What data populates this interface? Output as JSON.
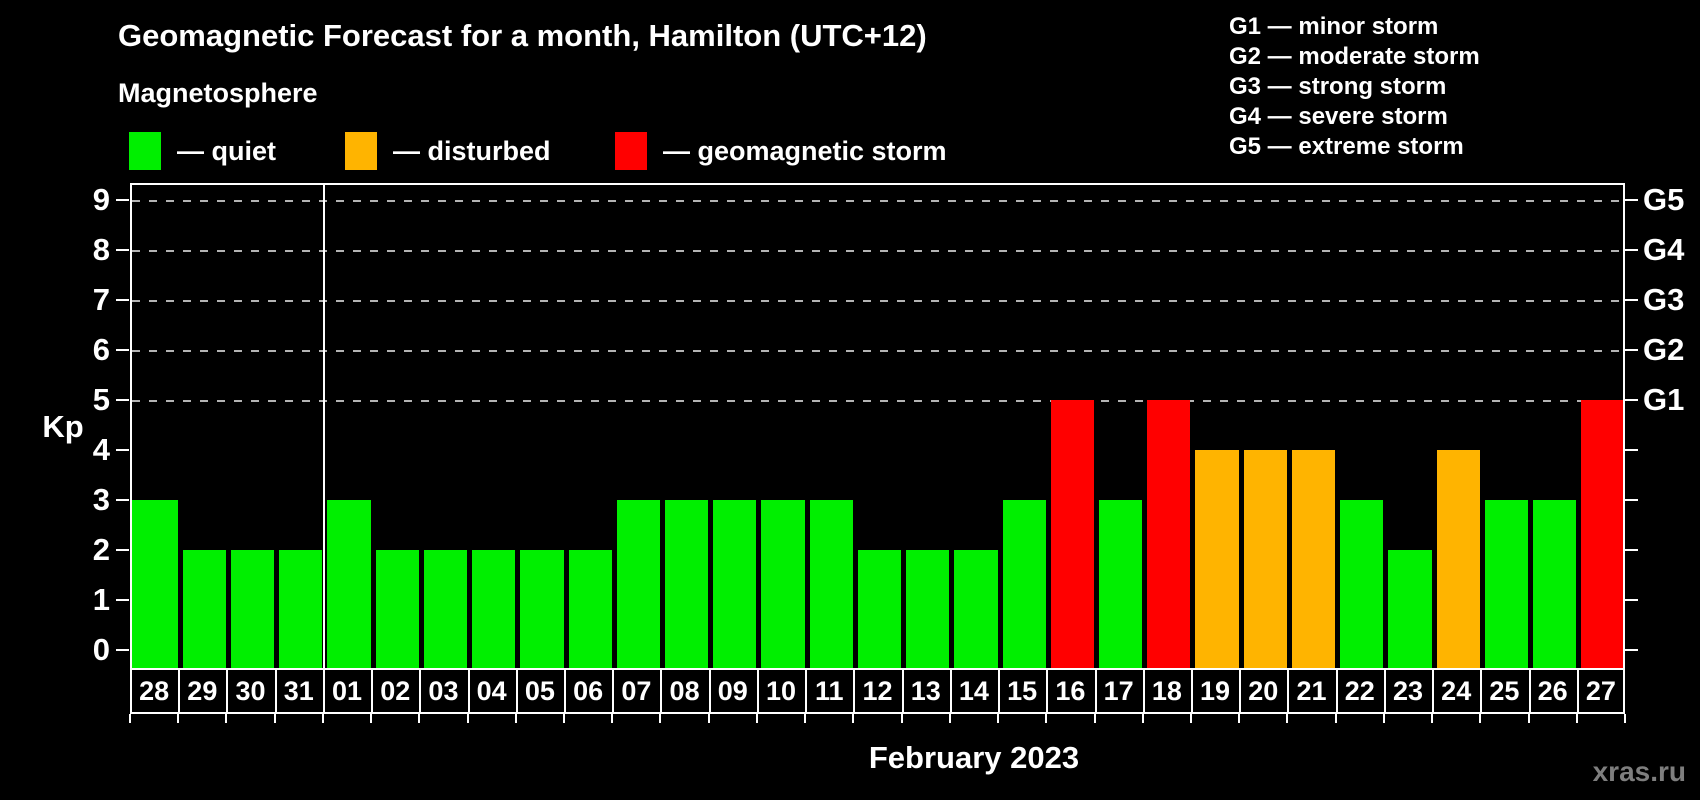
{
  "header": {
    "title": "Geomagnetic Forecast for a month, Hamilton (UTC+12)",
    "subtitle": "Magnetosphere",
    "watermark": "xras.ru"
  },
  "legend": {
    "items": [
      {
        "key": "quiet",
        "label": "— quiet",
        "color": "#00ef00"
      },
      {
        "key": "disturbed",
        "label": "— disturbed",
        "color": "#ffb400"
      },
      {
        "key": "storm",
        "label": "— geomagnetic storm",
        "color": "#ff0000"
      }
    ]
  },
  "storm_scale_legend": {
    "items": [
      "G1 — minor storm",
      "G2 — moderate storm",
      "G3 — strong storm",
      "G4 — severe storm",
      "G5 — extreme storm"
    ]
  },
  "colors": {
    "quiet": "#00ef00",
    "disturbed": "#ffb400",
    "storm": "#ff0000",
    "axis": "#ffffff",
    "gridline": "#b4b4b4"
  },
  "chart_data": {
    "type": "bar",
    "title": "Geomagnetic Forecast for a month, Hamilton (UTC+12)",
    "xlabel": "February 2023",
    "ylabel": "Kp",
    "ylim": [
      0,
      9
    ],
    "grid": "dashed horizontal at Kp 5-9",
    "legend_position": "top-left",
    "y_ticks": [
      0,
      1,
      2,
      3,
      4,
      5,
      6,
      7,
      8,
      9
    ],
    "gridlines_at": [
      5,
      6,
      7,
      8,
      9
    ],
    "right_axis_labels": [
      {
        "label": "G1",
        "kp": 5
      },
      {
        "label": "G2",
        "kp": 6
      },
      {
        "label": "G3",
        "kp": 7
      },
      {
        "label": "G4",
        "kp": 8
      },
      {
        "label": "G5",
        "kp": 9
      }
    ],
    "month_boundary_after_index": 3,
    "categories": [
      "28",
      "29",
      "30",
      "31",
      "01",
      "02",
      "03",
      "04",
      "05",
      "06",
      "07",
      "08",
      "09",
      "10",
      "11",
      "12",
      "13",
      "14",
      "15",
      "16",
      "17",
      "18",
      "19",
      "20",
      "21",
      "22",
      "23",
      "24",
      "25",
      "26",
      "27"
    ],
    "values": [
      3,
      2,
      2,
      2,
      3,
      2,
      2,
      2,
      2,
      2,
      3,
      3,
      3,
      3,
      3,
      2,
      2,
      2,
      3,
      5,
      3,
      5,
      4,
      4,
      4,
      3,
      2,
      4,
      3,
      3,
      5
    ],
    "statuses": [
      "quiet",
      "quiet",
      "quiet",
      "quiet",
      "quiet",
      "quiet",
      "quiet",
      "quiet",
      "quiet",
      "quiet",
      "quiet",
      "quiet",
      "quiet",
      "quiet",
      "quiet",
      "quiet",
      "quiet",
      "quiet",
      "quiet",
      "storm",
      "quiet",
      "storm",
      "disturbed",
      "disturbed",
      "disturbed",
      "quiet",
      "quiet",
      "disturbed",
      "quiet",
      "quiet",
      "storm"
    ]
  }
}
